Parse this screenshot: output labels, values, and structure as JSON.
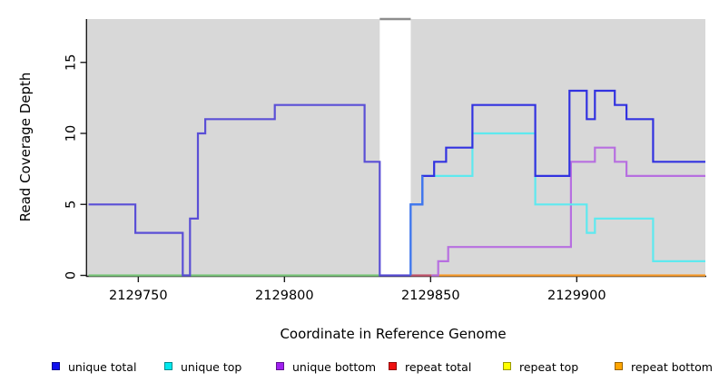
{
  "chart_data": {
    "type": "line",
    "step": true,
    "title": "",
    "xlabel": "Coordinate in Reference Genome",
    "ylabel": "Read Coverage Depth",
    "xlim": [
      2129732.5,
      2129944
    ],
    "ylim": [
      0,
      18
    ],
    "x_ticks": [
      "2129750",
      "2129800",
      "2129850",
      "2129900"
    ],
    "x_tick_values": [
      2129750,
      2129800,
      2129850,
      2129900
    ],
    "y_ticks": [
      "0",
      "5",
      "10",
      "15"
    ],
    "y_tick_values": [
      0,
      5,
      10,
      15
    ],
    "plot_bg": "#d8d8d8",
    "figure_bg": "#ffffff",
    "axis_color": "#1a1a1a",
    "masked_gap": {
      "x_start": 2129832.6,
      "x_end": 2129843.2,
      "fill": "#ffffff",
      "cap_color": "#8d8d8d"
    },
    "legend": [
      {
        "label": "unique total",
        "color": "#0f0fee"
      },
      {
        "label": "unique top",
        "color": "#00e9ee"
      },
      {
        "label": "unique bottom",
        "color": "#a020f0"
      },
      {
        "label": "repeat total",
        "color": "#ee1111"
      },
      {
        "label": "repeat top",
        "color": "#ffff00"
      },
      {
        "label": "repeat bottom",
        "color": "#ffa500"
      }
    ],
    "series": [
      {
        "id": "repeat-baseline-left-green",
        "legend": "repeat top / unique top at zero (blended)",
        "color": "#7cc87c",
        "points": [
          [
            2129733,
            0
          ],
          [
            2129832.6,
            0
          ]
        ]
      },
      {
        "id": "repeat-total-baseline",
        "legend": "repeat total",
        "color": "#c2566e",
        "points": [
          [
            2129843.2,
            0
          ],
          [
            2129850.3,
            0
          ]
        ]
      },
      {
        "id": "repeat-bottom-baseline",
        "legend": "repeat bottom",
        "color": "#f99d2d",
        "points": [
          [
            2129850.3,
            0
          ],
          [
            2129944,
            0
          ]
        ]
      },
      {
        "id": "unique-bottom",
        "legend": "unique bottom",
        "color": "#b76fe0",
        "points": [
          [
            2129850.3,
            0
          ],
          [
            2129852.6,
            0
          ],
          [
            2129852.6,
            1
          ],
          [
            2129856,
            1
          ],
          [
            2129856,
            2
          ],
          [
            2129898,
            2
          ],
          [
            2129898,
            8
          ],
          [
            2129906.2,
            8
          ],
          [
            2129906.2,
            9
          ],
          [
            2129913,
            9
          ],
          [
            2129913,
            8
          ],
          [
            2129917,
            8
          ],
          [
            2129917,
            7
          ],
          [
            2129944,
            7
          ]
        ]
      },
      {
        "id": "unique-top",
        "legend": "unique top",
        "color": "#5ee9ef",
        "points": [
          [
            2129843.2,
            0
          ],
          [
            2129843.2,
            5
          ],
          [
            2129847.2,
            5
          ],
          [
            2129847.2,
            7
          ],
          [
            2129864.3,
            7
          ],
          [
            2129864.3,
            10
          ],
          [
            2129885.8,
            10
          ],
          [
            2129885.8,
            5
          ],
          [
            2129903.4,
            5
          ],
          [
            2129903.4,
            3
          ],
          [
            2129906.2,
            3
          ],
          [
            2129906.2,
            4
          ],
          [
            2129926.1,
            4
          ],
          [
            2129926.1,
            1
          ],
          [
            2129944,
            1
          ]
        ]
      },
      {
        "id": "unique-total-left",
        "legend": "unique total (overlapping unique bottom)",
        "color": "#5a4fd6",
        "points": [
          [
            2129733,
            5
          ],
          [
            2129749,
            5
          ],
          [
            2129749,
            3
          ],
          [
            2129765.2,
            3
          ],
          [
            2129765.2,
            0
          ],
          [
            2129767.7,
            0
          ],
          [
            2129767.7,
            4
          ],
          [
            2129770.4,
            4
          ],
          [
            2129770.4,
            10
          ],
          [
            2129772.9,
            10
          ],
          [
            2129772.9,
            11
          ],
          [
            2129796.7,
            11
          ],
          [
            2129796.7,
            12
          ],
          [
            2129827.4,
            12
          ],
          [
            2129827.4,
            8
          ],
          [
            2129832.6,
            8
          ],
          [
            2129832.6,
            0
          ],
          [
            2129843.2,
            0
          ]
        ]
      },
      {
        "id": "unique-total-right",
        "legend": "unique total",
        "color": "#3232e0",
        "points": [
          [
            2129843.2,
            0
          ],
          [
            2129843.2,
            5
          ],
          [
            2129847.2,
            5
          ],
          [
            2129847.2,
            7
          ],
          [
            2129851.2,
            7
          ],
          [
            2129851.2,
            8
          ],
          [
            2129855.3,
            8
          ],
          [
            2129855.3,
            9
          ],
          [
            2129864.3,
            9
          ],
          [
            2129864.3,
            12
          ],
          [
            2129885.8,
            12
          ],
          [
            2129885.8,
            7
          ],
          [
            2129897.5,
            7
          ],
          [
            2129897.5,
            13
          ],
          [
            2129903.4,
            13
          ],
          [
            2129903.4,
            11
          ],
          [
            2129906.2,
            11
          ],
          [
            2129906.2,
            13
          ],
          [
            2129913,
            13
          ],
          [
            2129913,
            12
          ],
          [
            2129917,
            12
          ],
          [
            2129917,
            11
          ],
          [
            2129926.1,
            11
          ],
          [
            2129926.1,
            8
          ],
          [
            2129944,
            8
          ]
        ]
      },
      {
        "id": "unique-total-rise-overlap",
        "legend": "unique total over unique top (blended)",
        "color": "#3f78ee",
        "points": [
          [
            2129843.2,
            0
          ],
          [
            2129843.2,
            5
          ],
          [
            2129847.2,
            5
          ],
          [
            2129847.2,
            7
          ]
        ]
      }
    ]
  }
}
